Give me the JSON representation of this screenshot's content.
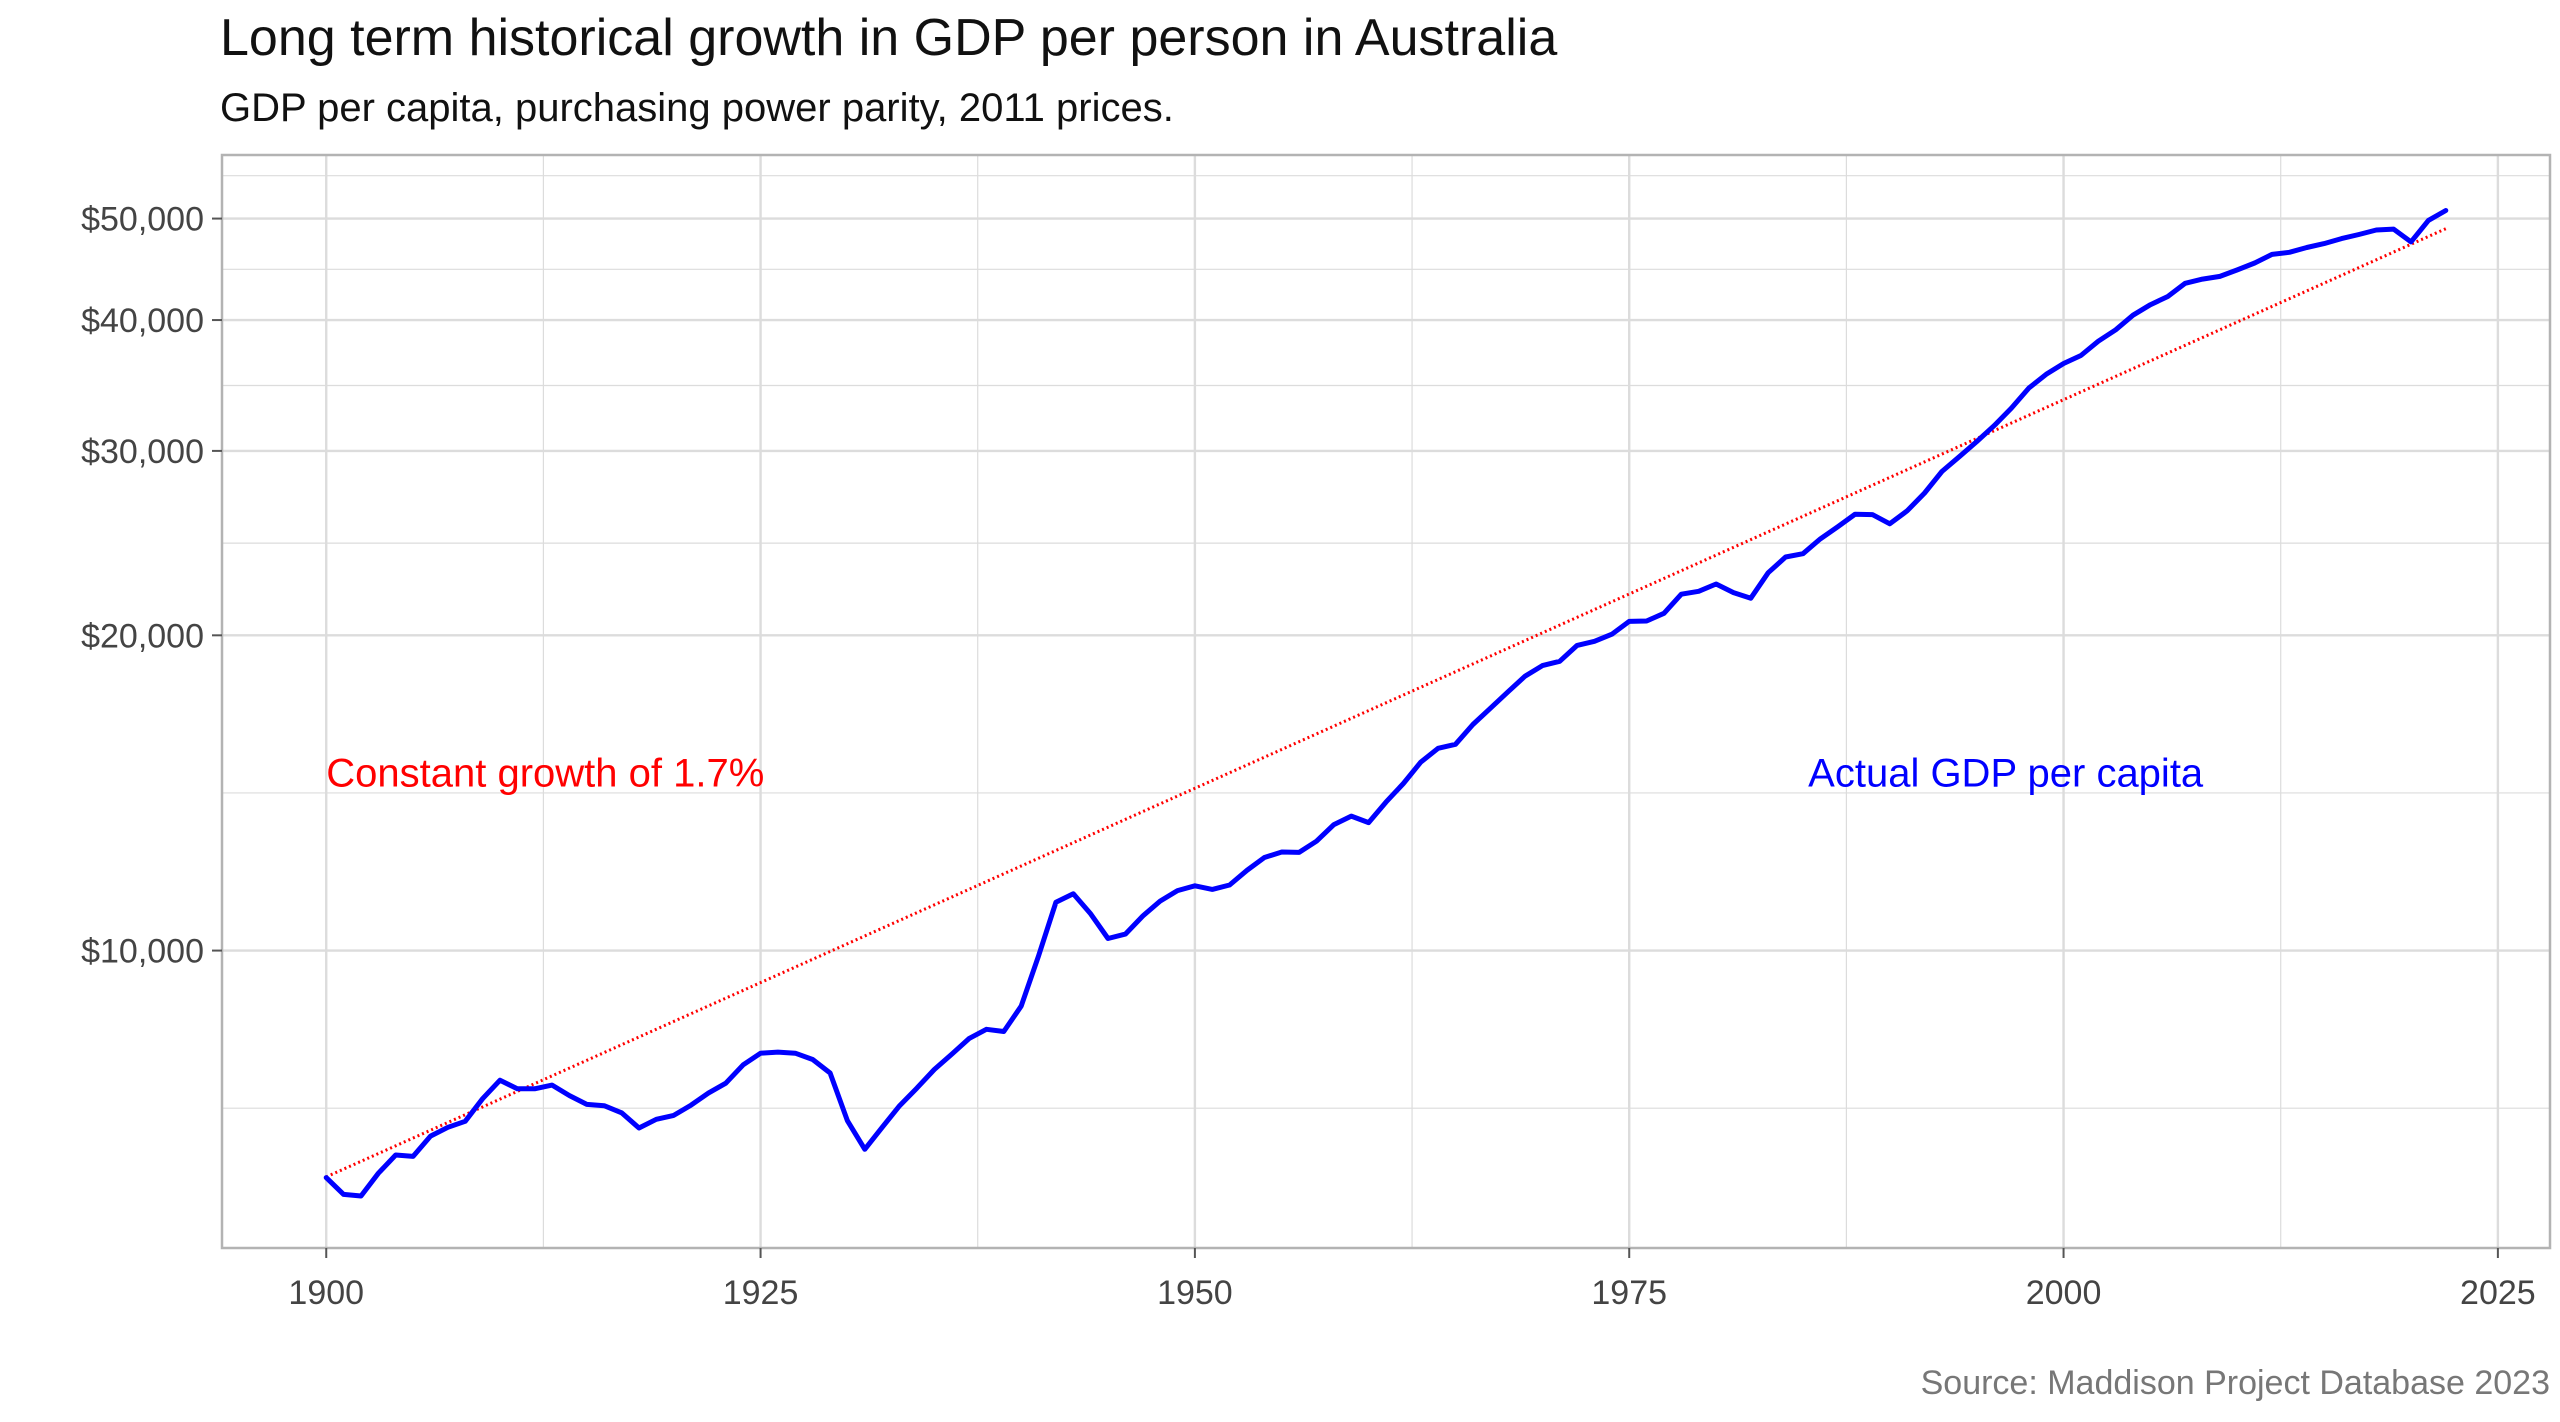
{
  "title": "Long term historical growth in GDP per person in Australia",
  "subtitle": "GDP per capita, purchasing power parity, 2011 prices.",
  "caption": "Source: Maddison Project Database 2023",
  "colors": {
    "actual": "#0000ff",
    "trend": "#ff0000",
    "grid": "#dcdcdc",
    "panel_border": "#b3b3b3",
    "axis_text": "#444444"
  },
  "chart_data": {
    "type": "line",
    "title": "Long term historical growth in GDP per person in Australia",
    "subtitle": "GDP per capita, purchasing power parity, 2011 prices.",
    "xlabel": "",
    "ylabel": "",
    "xlim": [
      1894,
      2028
    ],
    "ylim": [
      5200,
      57500
    ],
    "y_scale": "log",
    "grid": true,
    "x_ticks": [
      1900,
      1925,
      1950,
      1975,
      2000,
      2025
    ],
    "y_ticks": [
      10000,
      20000,
      30000,
      40000,
      50000
    ],
    "y_tick_labels": [
      "$10,000",
      "$20,000",
      "$30,000",
      "$40,000",
      "$50,000"
    ],
    "annotations": [
      {
        "text": "Constant growth of 1.7%",
        "x": 1900,
        "y": 14800,
        "color": "#ff0000",
        "series": "trend"
      },
      {
        "text": "Actual GDP per capita",
        "x": 1985.3,
        "y": 14800,
        "color": "#0000ff",
        "series": "actual"
      }
    ],
    "series": [
      {
        "name": "Actual GDP per capita",
        "style": "solid",
        "color": "#0000ff",
        "x": [
          1900,
          1901,
          1902,
          1903,
          1904,
          1905,
          1906,
          1907,
          1908,
          1909,
          1910,
          1911,
          1912,
          1913,
          1914,
          1915,
          1916,
          1917,
          1918,
          1919,
          1920,
          1921,
          1922,
          1923,
          1924,
          1925,
          1926,
          1927,
          1928,
          1929,
          1930,
          1931,
          1932,
          1933,
          1934,
          1935,
          1936,
          1937,
          1938,
          1939,
          1940,
          1941,
          1942,
          1943,
          1944,
          1945,
          1946,
          1947,
          1948,
          1949,
          1950,
          1951,
          1952,
          1953,
          1954,
          1955,
          1956,
          1957,
          1958,
          1959,
          1960,
          1961,
          1962,
          1963,
          1964,
          1965,
          1966,
          1967,
          1968,
          1969,
          1970,
          1971,
          1972,
          1973,
          1974,
          1975,
          1976,
          1977,
          1978,
          1979,
          1980,
          1981,
          1982,
          1983,
          1984,
          1985,
          1986,
          1987,
          1988,
          1989,
          1990,
          1991,
          1992,
          1993,
          1994,
          1995,
          1996,
          1997,
          1998,
          1999,
          2000,
          2001,
          2002,
          2003,
          2004,
          2005,
          2006,
          2007,
          2008,
          2009,
          2010,
          2011,
          2012,
          2013,
          2014,
          2015,
          2016,
          2017,
          2018,
          2019,
          2020,
          2021,
          2022
        ],
        "values": [
          6070,
          5850,
          5830,
          6130,
          6380,
          6360,
          6650,
          6780,
          6870,
          7220,
          7520,
          7380,
          7380,
          7440,
          7270,
          7130,
          7110,
          7000,
          6770,
          6900,
          6960,
          7120,
          7310,
          7470,
          7780,
          7980,
          8000,
          7980,
          7870,
          7640,
          6880,
          6460,
          6780,
          7110,
          7390,
          7700,
          7960,
          8240,
          8410,
          8370,
          8850,
          9880,
          11120,
          11330,
          10840,
          10270,
          10370,
          10790,
          11150,
          11410,
          11530,
          11440,
          11550,
          11930,
          12270,
          12420,
          12410,
          12720,
          13190,
          13440,
          13250,
          13860,
          14440,
          15130,
          15600,
          15740,
          16440,
          17030,
          17650,
          18280,
          18710,
          18890,
          19560,
          19740,
          20050,
          20620,
          20640,
          20990,
          21890,
          22030,
          22390,
          21970,
          21700,
          22950,
          23760,
          23930,
          24720,
          25390,
          26100,
          26080,
          25560,
          26300,
          27350,
          28670,
          29620,
          30620,
          31710,
          32960,
          34440,
          35500,
          36360,
          37000,
          38180,
          39150,
          40430,
          41370,
          42130,
          43370,
          43770,
          44030,
          44660,
          45350,
          46210,
          46430,
          46920,
          47320,
          47850,
          48280,
          48760,
          48860,
          47500,
          49800,
          50900
        ]
      },
      {
        "name": "Constant growth of 1.7%",
        "style": "dotted",
        "color": "#ff0000",
        "x": [
          1900,
          2022
        ],
        "values": [
          6080,
          48900
        ]
      }
    ]
  }
}
